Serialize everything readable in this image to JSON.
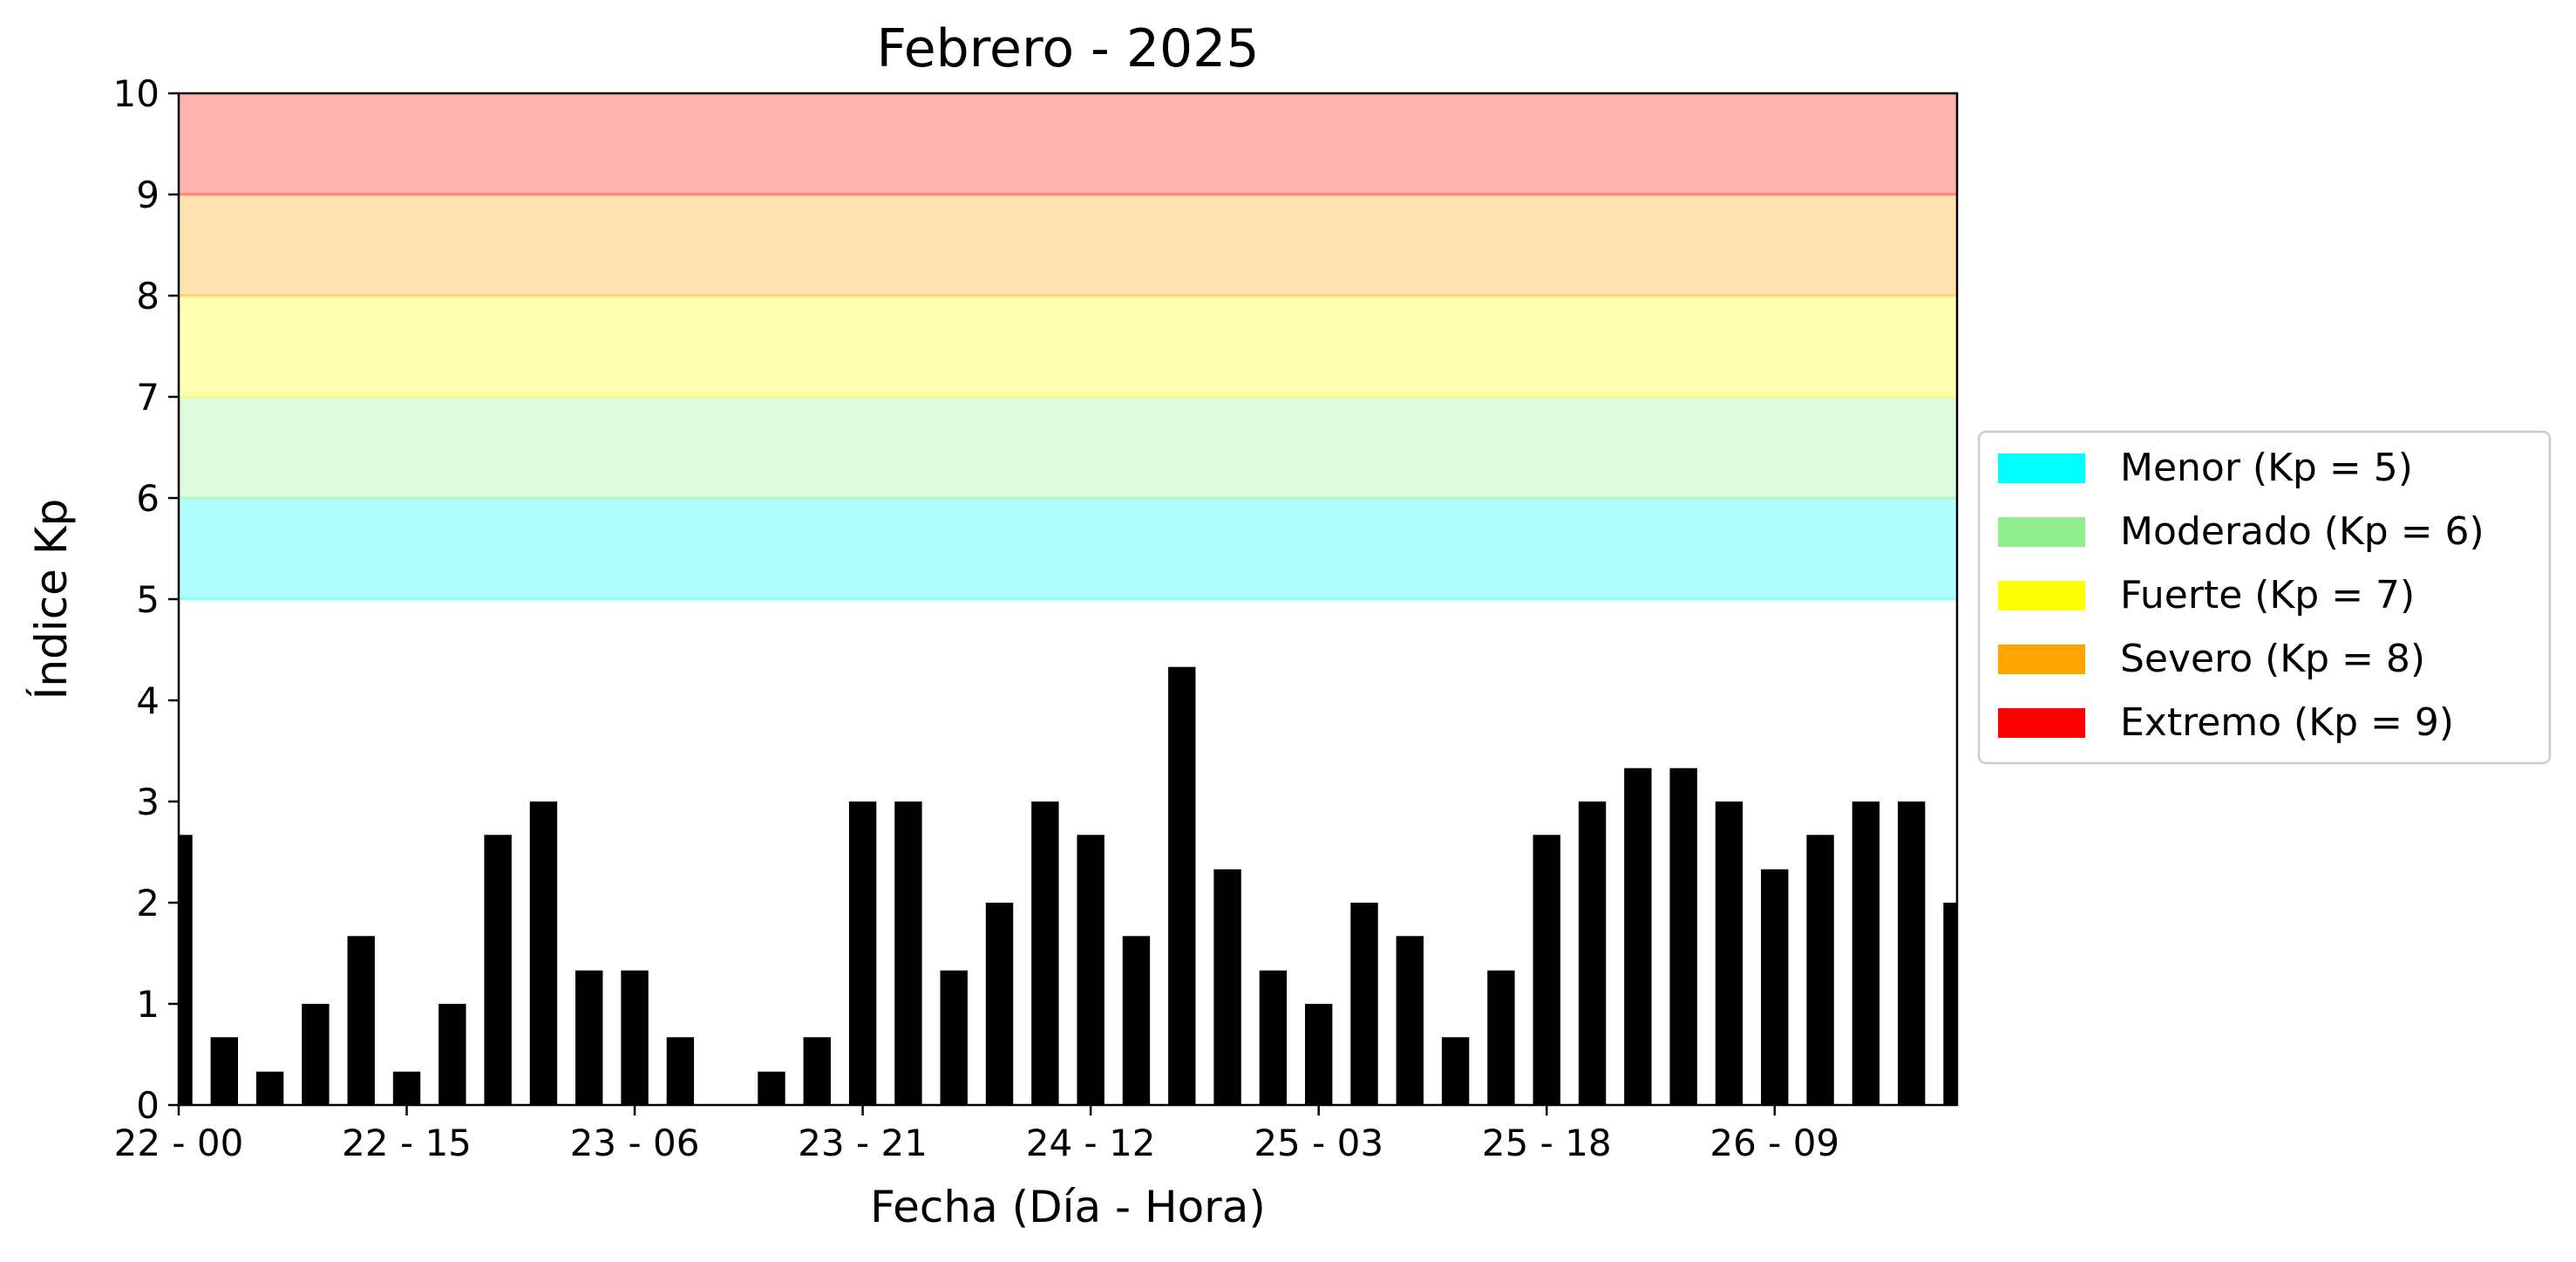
{
  "chart_data": {
    "type": "bar",
    "title": "Febrero - 2025",
    "xlabel": "Fecha (Día - Hora)",
    "ylabel": "Índice Kp",
    "ylim": [
      0,
      10
    ],
    "yticks": [
      0,
      1,
      2,
      3,
      4,
      5,
      6,
      7,
      8,
      9,
      10
    ],
    "x_tick_labels": [
      {
        "index": 0,
        "label": "22 - 00"
      },
      {
        "index": 5,
        "label": "22 - 15"
      },
      {
        "index": 10,
        "label": "23 - 06"
      },
      {
        "index": 15,
        "label": "23 - 21"
      },
      {
        "index": 20,
        "label": "24 - 12"
      },
      {
        "index": 25,
        "label": "25 - 03"
      },
      {
        "index": 30,
        "label": "25 - 18"
      },
      {
        "index": 35,
        "label": "26 - 09"
      }
    ],
    "series": [
      {
        "values": [
          2.67,
          0.67,
          0.33,
          1.0,
          1.67,
          0.33,
          1.0,
          2.67,
          3.0,
          1.33,
          1.33,
          0.67,
          0.0,
          0.33,
          0.67,
          3.0,
          3.0,
          1.33,
          2.0,
          3.0,
          2.67,
          1.67,
          4.33,
          2.33,
          1.33,
          1.0,
          2.0,
          1.67,
          0.67,
          1.33,
          2.67,
          3.0,
          3.33,
          3.33,
          3.0,
          2.33,
          2.67,
          3.0,
          3.0,
          2.0
        ],
        "color": "#000000"
      }
    ],
    "bands": [
      {
        "from": 5,
        "to": 6,
        "color": "#00ffff"
      },
      {
        "from": 6,
        "to": 7,
        "color": "#90ee90"
      },
      {
        "from": 7,
        "to": 8,
        "color": "#ffff00"
      },
      {
        "from": 8,
        "to": 9,
        "color": "#ffa500"
      },
      {
        "from": 9,
        "to": 10,
        "color": "#ff0000"
      }
    ],
    "legend": {
      "placement": "right",
      "entries": [
        {
          "label": "Menor (Kp = 5)",
          "color": "#00ffff"
        },
        {
          "label": "Moderado (Kp = 6)",
          "color": "#90ee90"
        },
        {
          "label": "Fuerte (Kp = 7)",
          "color": "#ffff00"
        },
        {
          "label": "Severo (Kp = 8)",
          "color": "#ffa500"
        },
        {
          "label": "Extremo (Kp = 9)",
          "color": "#ff0000"
        }
      ]
    },
    "grid": false
  }
}
